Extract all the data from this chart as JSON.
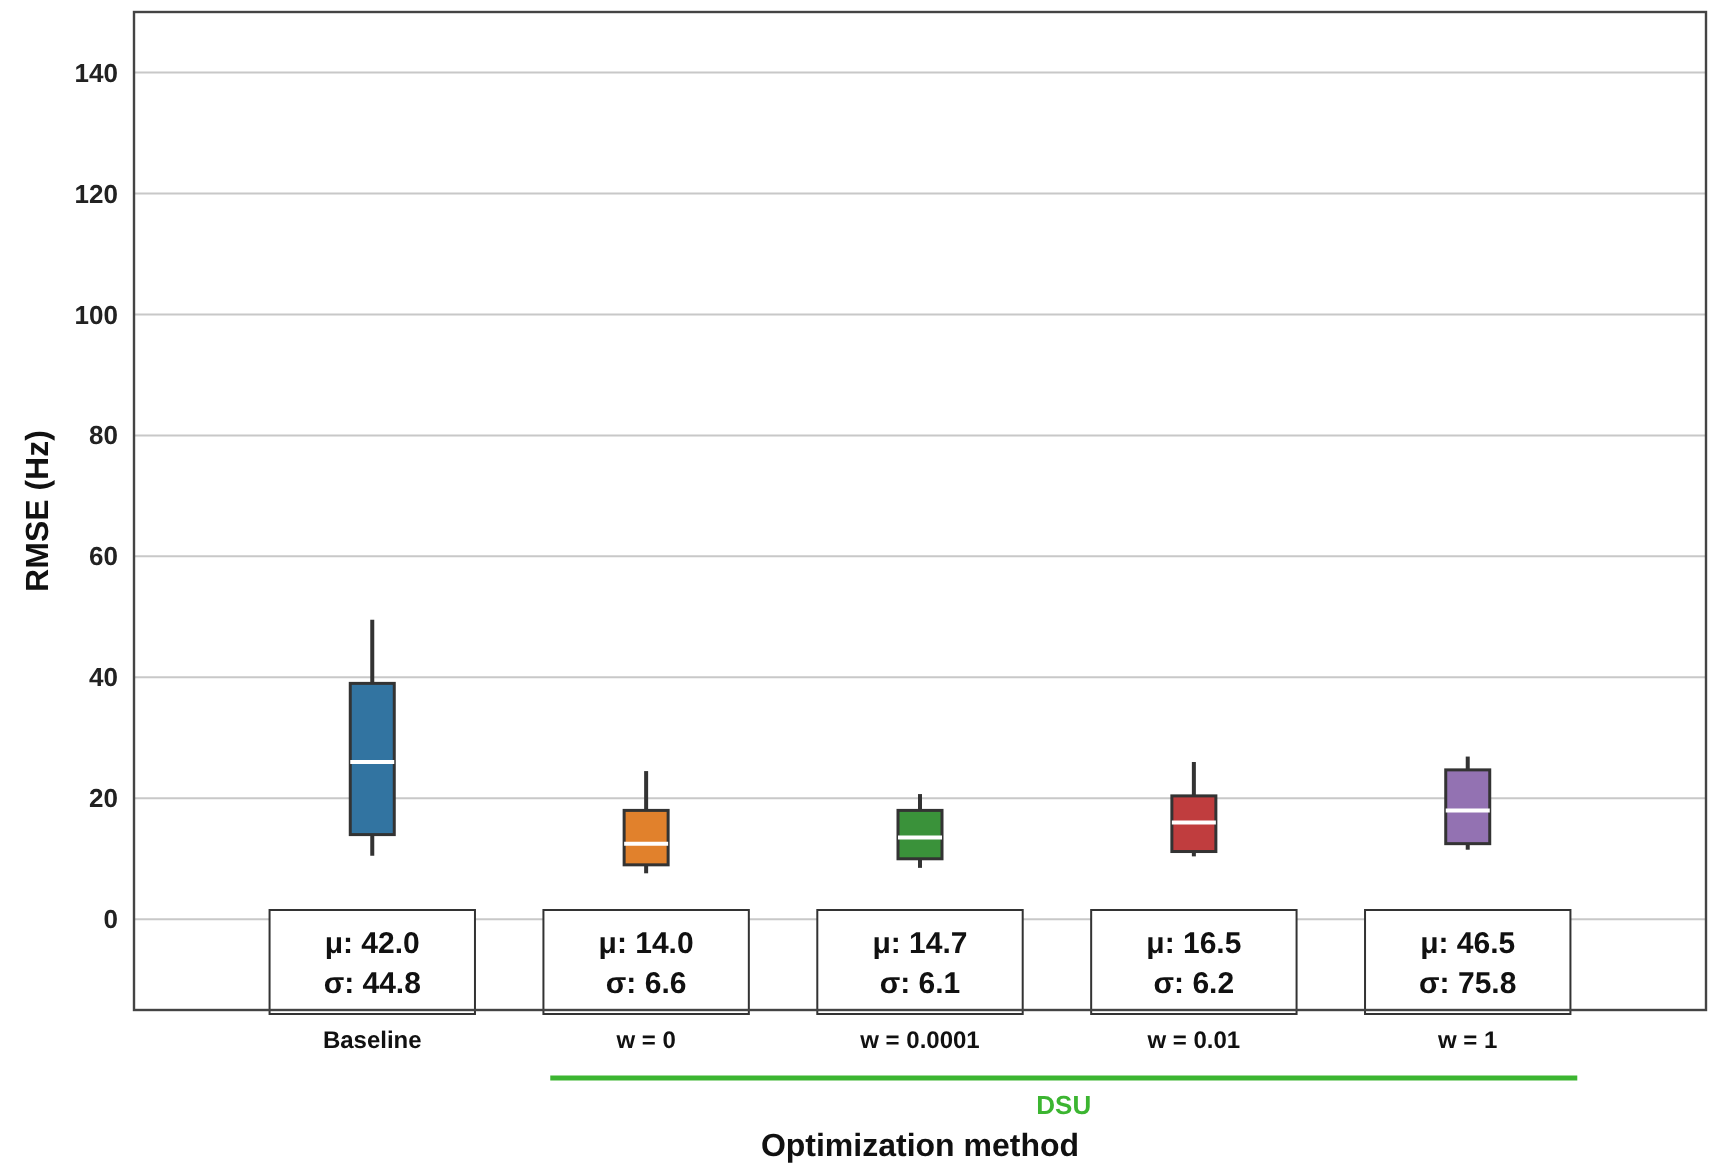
{
  "chart_data": {
    "type": "box",
    "xlabel": "Optimization method",
    "ylabel": "RMSE (Hz)",
    "categories": [
      "Baseline",
      "w = 0",
      "w = 0.0001",
      "w = 0.01",
      "w = 1"
    ],
    "colors": [
      "#3274a1",
      "#e1812c",
      "#3a923a",
      "#c03d3e",
      "#9372b2"
    ],
    "boxes": [
      {
        "low": 10.5,
        "q1": 14,
        "median": 26,
        "q3": 39,
        "high": 49.5
      },
      {
        "low": 7.6,
        "q1": 9,
        "median": 12.5,
        "q3": 18,
        "high": 24.5
      },
      {
        "low": 8.5,
        "q1": 10,
        "median": 13.5,
        "q3": 18,
        "high": 20.7
      },
      {
        "low": 10.4,
        "q1": 11.2,
        "median": 16,
        "q3": 20.4,
        "high": 26
      },
      {
        "low": 11.5,
        "q1": 12.5,
        "median": 18,
        "q3": 24.7,
        "high": 26.9
      }
    ],
    "ylim": [
      -15,
      150
    ],
    "yticks": [
      0,
      20,
      40,
      60,
      80,
      100,
      120,
      140
    ],
    "grid": "y",
    "annotations": [
      "μ: 42.0\nσ: 44.8",
      "μ: 14.0\nσ: 6.6",
      "μ: 14.7\nσ: 6.1",
      "μ: 16.5\nσ: 6.2",
      "μ: 46.5\nσ: 75.8",
      "DSU"
    ]
  }
}
